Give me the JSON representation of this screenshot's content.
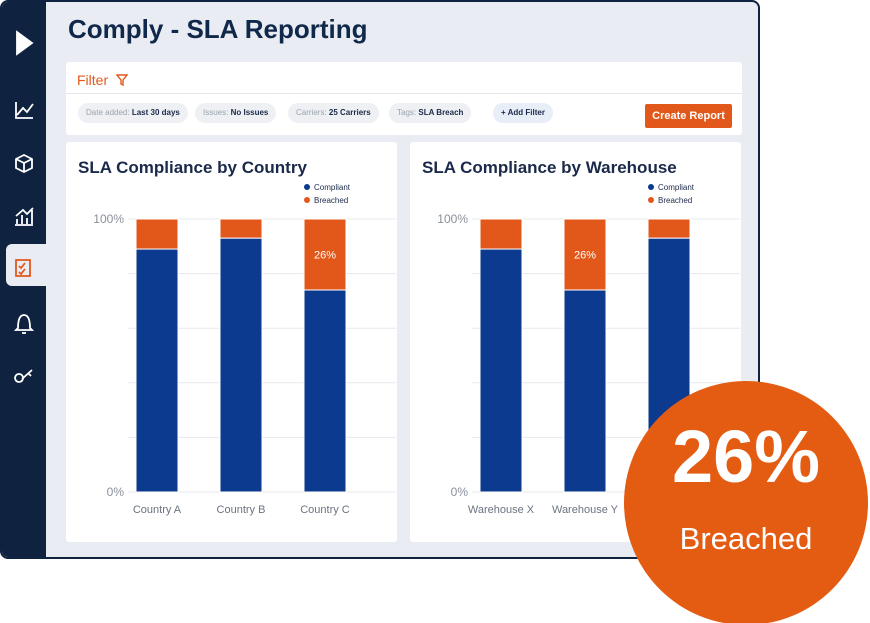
{
  "header": {
    "title": "Comply - SLA Reporting"
  },
  "filter": {
    "label": "Filter",
    "chips": [
      {
        "label": "Date added:",
        "value": "Last 30 days"
      },
      {
        "label": "Issues:",
        "value": "No Issues"
      },
      {
        "label": "Carriers:",
        "value": "25 Carriers"
      },
      {
        "label": "Tags:",
        "value": "SLA Breach"
      }
    ],
    "add_filter": "Add Filter",
    "create_report": "Create Report"
  },
  "chart_data": [
    {
      "type": "stacked-bar",
      "title": "SLA Compliance by Country",
      "categories": [
        "Country A",
        "Country B",
        "Country C"
      ],
      "series": [
        {
          "name": "Compliant",
          "color": "#0b3a8e",
          "values": [
            89,
            93,
            74
          ]
        },
        {
          "name": "Breached",
          "color": "#e2581a",
          "values": [
            11,
            7,
            26
          ],
          "value_labels": [
            null,
            null,
            "26%"
          ]
        }
      ],
      "ylim": [
        0,
        100
      ],
      "yticks": [
        {
          "value": 0,
          "label": "0%"
        },
        {
          "value": 100,
          "label": "100%"
        }
      ],
      "gridlines": [
        20,
        40,
        60,
        80
      ]
    },
    {
      "type": "stacked-bar",
      "title": "SLA Compliance by Warehouse",
      "categories": [
        "Warehouse X",
        "Warehouse Y",
        null
      ],
      "series": [
        {
          "name": "Compliant",
          "color": "#0b3a8e",
          "values": [
            89,
            74,
            93
          ]
        },
        {
          "name": "Breached",
          "color": "#e2581a",
          "values": [
            11,
            26,
            7
          ],
          "value_labels": [
            null,
            "26%",
            null
          ]
        }
      ],
      "ylim": [
        0,
        100
      ],
      "yticks": [
        {
          "value": 0,
          "label": "0%"
        },
        {
          "value": 100,
          "label": "100%"
        }
      ],
      "gridlines": [
        20,
        40,
        60,
        80
      ]
    }
  ],
  "badge": {
    "value": "26%",
    "label": "Breached"
  }
}
